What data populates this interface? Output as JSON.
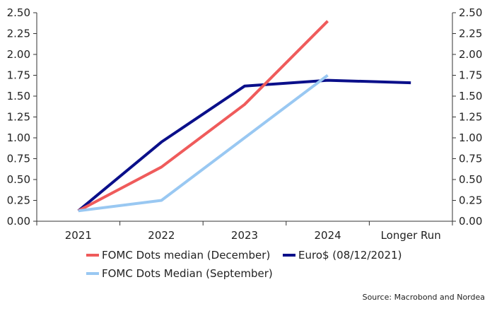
{
  "chart_data": {
    "type": "line",
    "title": "",
    "xlabel": "",
    "ylabel": "",
    "categories": [
      "2021",
      "2022",
      "2023",
      "2024",
      "Longer Run"
    ],
    "ylim": [
      0,
      2.5
    ],
    "yticks": [
      "0.00",
      "0.25",
      "0.50",
      "0.75",
      "1.00",
      "1.25",
      "1.50",
      "1.75",
      "2.00",
      "2.25",
      "2.50"
    ],
    "series": [
      {
        "name": "FOMC Dots median (December)",
        "color": "#ef5b5b",
        "values": [
          0.125,
          0.65,
          1.4,
          2.4,
          null
        ]
      },
      {
        "name": "Euro$ (08/12/2021)",
        "color": "#0a0f8a",
        "values": [
          0.125,
          0.95,
          1.62,
          1.69,
          1.66
        ]
      },
      {
        "name": "FOMC Dots Median (September)",
        "color": "#99c8f2",
        "values": [
          0.125,
          0.25,
          null,
          1.75,
          null
        ]
      }
    ],
    "legend_position": "bottom",
    "source": "Source: Macrobond and Nordea"
  }
}
